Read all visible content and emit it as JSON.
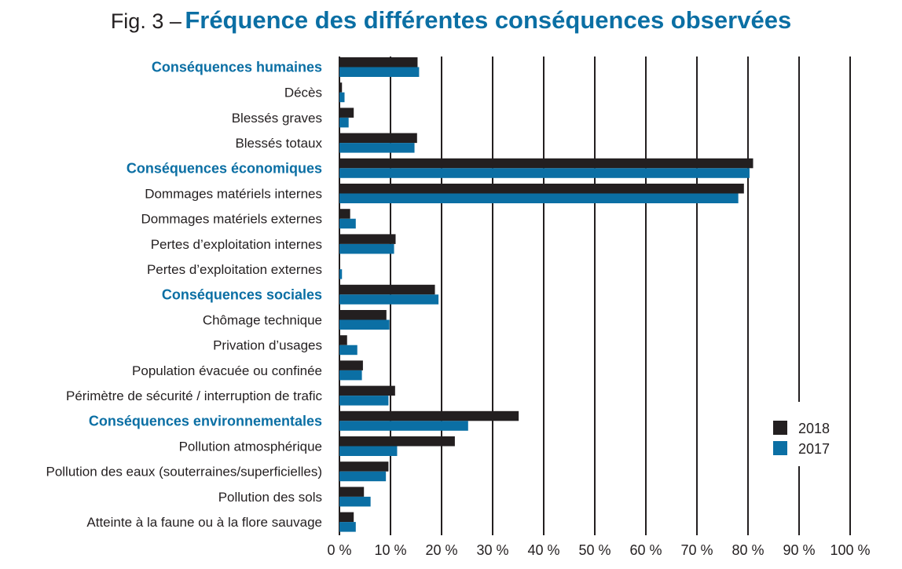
{
  "title": {
    "prefix": "Fig. 3 –",
    "main": "Fréquence des différentes conséquences observées"
  },
  "colors": {
    "series_2018": "#231f20",
    "series_2017": "#0b6fa4",
    "group_label": "#0b6fa4",
    "gridline": "#231f20"
  },
  "chart_data": {
    "type": "bar",
    "orientation": "horizontal",
    "categories": [
      "Conséquences humaines",
      "Décès",
      "Blessés graves",
      "Blessés totaux",
      "Conséquences économiques",
      "Dommages matériels internes",
      "Dommages matériels externes",
      "Pertes d’exploitation internes",
      "Pertes d’exploitation externes",
      "Conséquences sociales",
      "Chômage technique",
      "Privation d’usages",
      "Population évacuée ou confinée",
      "Périmètre de sécurité / interruption de trafic",
      "Conséquences environnementales",
      "Pollution atmosphérique",
      "Pollution des eaux (souterraines/superficielles)",
      "Pollution des sols",
      "Atteinte à la faune ou à la flore sauvage"
    ],
    "group_headers": [
      "Conséquences humaines",
      "Conséquences économiques",
      "Conséquences sociales",
      "Conséquences environnementales"
    ],
    "series": [
      {
        "name": "2018",
        "values": [
          15.3,
          0.5,
          2.8,
          15.2,
          81.0,
          79.2,
          2.1,
          11.0,
          0,
          18.7,
          9.2,
          1.5,
          4.6,
          10.9,
          35.1,
          22.6,
          9.6,
          4.8,
          2.8
        ]
      },
      {
        "name": "2017",
        "values": [
          15.6,
          1.0,
          1.8,
          14.7,
          80.3,
          78.1,
          3.2,
          10.7,
          0.5,
          19.4,
          9.8,
          3.5,
          4.4,
          9.6,
          25.2,
          11.3,
          9.1,
          6.1,
          3.2
        ]
      }
    ],
    "xlim": [
      0,
      100
    ],
    "xticks": [
      "0 %",
      "10 %",
      "20 %",
      "30 %",
      "40 %",
      "50 %",
      "60 %",
      "70 %",
      "80 %",
      "90 %",
      "100 %"
    ],
    "grid": "vertical",
    "legend_position": "right"
  }
}
